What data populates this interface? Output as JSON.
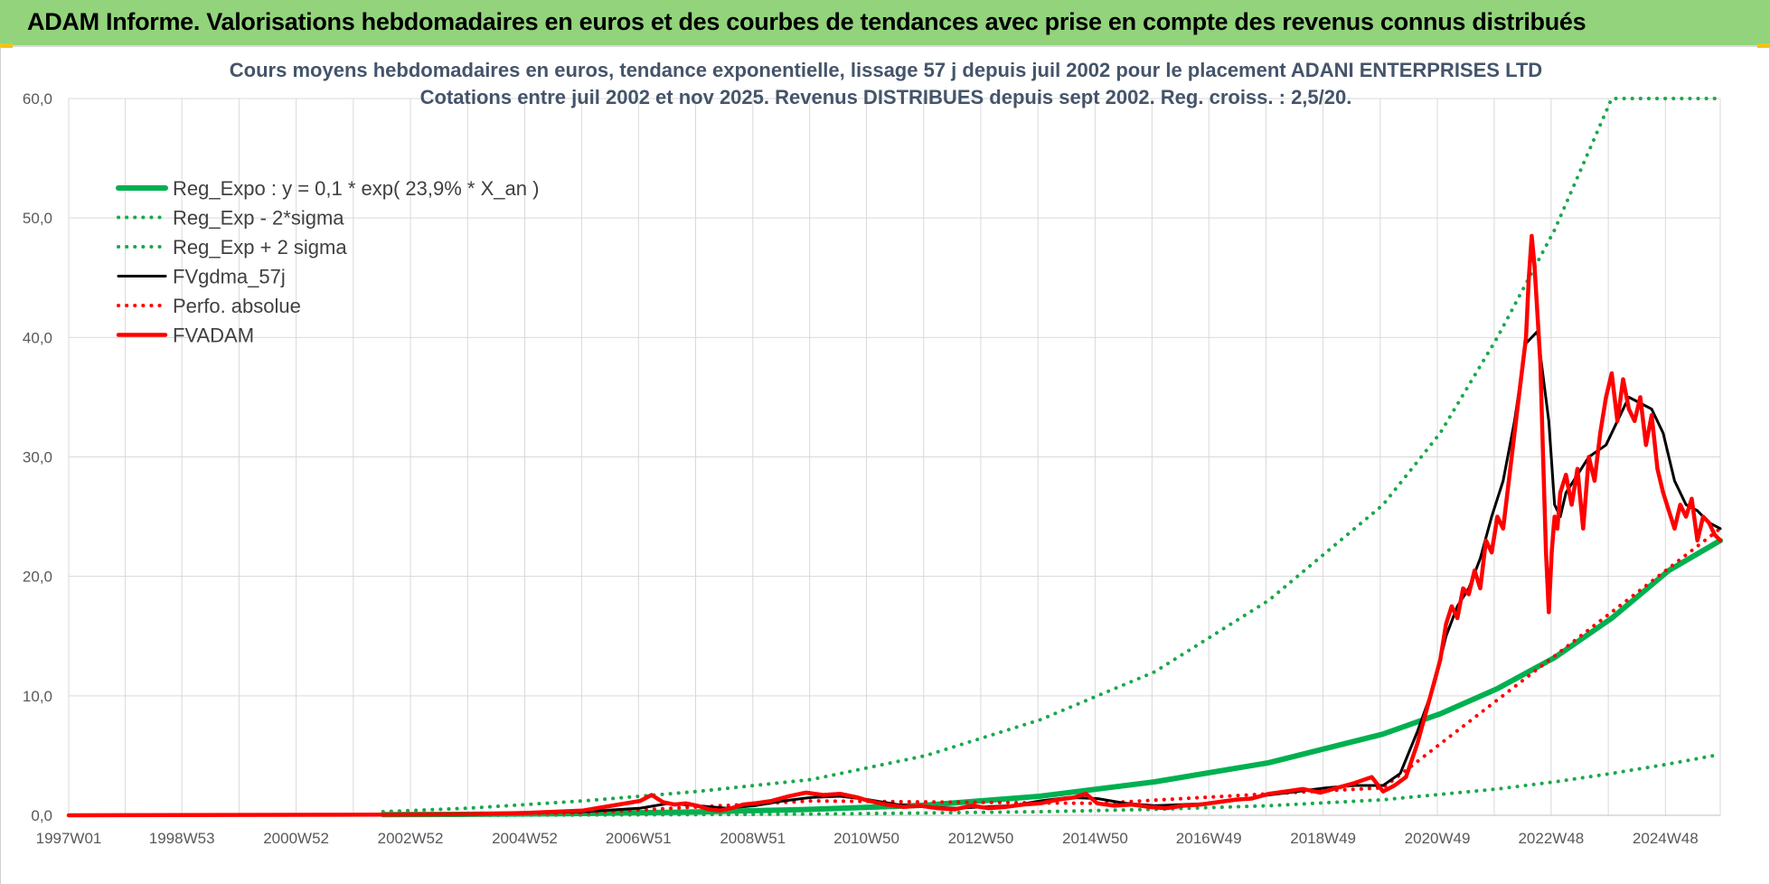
{
  "banner": {
    "title": "ADAM Informe. Valorisations hebdomadaires en euros et des courbes de tendances avec prise en compte des revenus connus distribués"
  },
  "colors": {
    "banner_bg": "#92d37c",
    "green": "#00b050",
    "dotgreen": "#1aa84c",
    "red": "#ff0000",
    "black": "#000000",
    "grid": "#d9d9d9"
  },
  "chart_data": {
    "type": "line",
    "title": "Cours moyens hebdomadaires en euros, tendance exponentielle, lissage 57 j depuis juil 2002 pour le placement ADANI ENTERPRISES LTD",
    "subtitle": "Cotations entre juil 2002 et nov 2025. Revenus DISTRIBUES depuis sept 2002. Reg. croiss. : 2,5/20.",
    "xlabel": "",
    "ylabel": "",
    "xlim": [
      1997.0,
      2025.9
    ],
    "ylim": [
      0,
      60
    ],
    "yticks": [
      "0,0",
      "10,0",
      "20,0",
      "30,0",
      "40,0",
      "50,0",
      "60,0"
    ],
    "xticks": [
      {
        "x": 1997.0,
        "label": "1997W01"
      },
      {
        "x": 1998.98,
        "label": "1998W53"
      },
      {
        "x": 2000.98,
        "label": "2000W52"
      },
      {
        "x": 2002.98,
        "label": "2002W52"
      },
      {
        "x": 2004.98,
        "label": "2004W52"
      },
      {
        "x": 2006.97,
        "label": "2006W51"
      },
      {
        "x": 2008.97,
        "label": "2008W51"
      },
      {
        "x": 2010.96,
        "label": "2010W50"
      },
      {
        "x": 2012.96,
        "label": "2012W50"
      },
      {
        "x": 2014.96,
        "label": "2014W50"
      },
      {
        "x": 2016.95,
        "label": "2016W49"
      },
      {
        "x": 2018.95,
        "label": "2018W49"
      },
      {
        "x": 2020.95,
        "label": "2020W49"
      },
      {
        "x": 2022.94,
        "label": "2022W48"
      },
      {
        "x": 2024.94,
        "label": "2024W48"
      }
    ],
    "legend_position": "top-left",
    "series": [
      {
        "name": "Reg_Expo : y = 0,1 * exp( 23,9% *  X_an )",
        "style": "solid-thick",
        "color": "#00b050",
        "x": [
          2002.5,
          2004,
          2006,
          2008,
          2010,
          2012,
          2014,
          2016,
          2018,
          2020,
          2021,
          2022,
          2023,
          2024,
          2025,
          2025.9
        ],
        "values": [
          0.05,
          0.08,
          0.15,
          0.28,
          0.5,
          0.85,
          1.6,
          2.8,
          4.4,
          6.8,
          8.5,
          10.6,
          13.2,
          16.5,
          20.5,
          23.0
        ]
      },
      {
        "name": "Reg_Exp - 2*sigma",
        "style": "dotted",
        "color": "#1aa84c",
        "x": [
          2002.5,
          2006,
          2010,
          2014,
          2016,
          2018,
          2020,
          2022,
          2023,
          2024,
          2025,
          2025.9
        ],
        "values": [
          0.0,
          0.02,
          0.1,
          0.3,
          0.5,
          0.8,
          1.3,
          2.2,
          2.8,
          3.5,
          4.3,
          5.1
        ]
      },
      {
        "name": "Reg_Exp + 2 sigma",
        "style": "dotted",
        "color": "#1aa84c",
        "x": [
          2002.5,
          2004,
          2006,
          2008,
          2010,
          2012,
          2014,
          2016,
          2018,
          2020,
          2021,
          2022,
          2023,
          2024,
          2025,
          2025.9
        ],
        "values": [
          0.3,
          0.6,
          1.2,
          2.0,
          3.0,
          5.0,
          8.0,
          12.0,
          18.0,
          26.0,
          32.0,
          40.0,
          49.0,
          60.0,
          60.0,
          60.0
        ]
      },
      {
        "name": "FVgdma_57j",
        "style": "solid",
        "color": "#000000",
        "x": [
          2002.5,
          2004,
          2006,
          2007,
          2007.5,
          2008,
          2008.5,
          2009,
          2009.5,
          2010,
          2010.5,
          2011,
          2011.5,
          2012,
          2012.5,
          2013,
          2013.5,
          2014,
          2014.5,
          2015,
          2015.5,
          2016,
          2016.5,
          2017,
          2017.5,
          2018,
          2018.5,
          2019,
          2019.5,
          2020,
          2020.3,
          2020.6,
          2020.9,
          2021.1,
          2021.3,
          2021.5,
          2021.7,
          2021.9,
          2022.1,
          2022.3,
          2022.5,
          2022.7,
          2022.9,
          2023.0,
          2023.1,
          2023.2,
          2023.4,
          2023.6,
          2023.9,
          2024.1,
          2024.3,
          2024.5,
          2024.7,
          2024.9,
          2025.1,
          2025.3,
          2025.5,
          2025.7,
          2025.9
        ],
        "values": [
          0.05,
          0.1,
          0.3,
          0.6,
          1.0,
          0.8,
          0.6,
          0.8,
          1.2,
          1.5,
          1.6,
          1.3,
          0.9,
          0.7,
          0.6,
          0.7,
          0.8,
          1.2,
          1.5,
          1.4,
          1.0,
          0.8,
          0.9,
          1.0,
          1.3,
          1.7,
          2.0,
          2.3,
          2.5,
          2.5,
          3.5,
          7.0,
          11.0,
          15.0,
          17.5,
          19.0,
          21.5,
          25.0,
          28.0,
          33.0,
          39.5,
          40.5,
          33.0,
          26.0,
          25.0,
          27.0,
          28.5,
          30.0,
          31.0,
          33.0,
          35.0,
          34.5,
          34.0,
          32.0,
          28.0,
          26.0,
          25.5,
          24.5,
          24.0
        ]
      },
      {
        "name": "Perfo. absolue",
        "style": "dotted",
        "color": "#ff0000",
        "x": [
          2002.5,
          2006,
          2010,
          2015,
          2018,
          2020,
          2025.9
        ],
        "values": [
          0.05,
          0.2,
          1.2,
          1.0,
          1.8,
          2.3,
          24.0
        ]
      },
      {
        "name": "FVADAM",
        "style": "solid-thick",
        "color": "#ff0000",
        "x": [
          1997.0,
          2002.5,
          2004,
          2005,
          2006,
          2006.5,
          2007,
          2007.2,
          2007.4,
          2007.6,
          2007.8,
          2008,
          2008.2,
          2008.4,
          2008.6,
          2008.8,
          2009,
          2009.3,
          2009.6,
          2009.9,
          2010.2,
          2010.5,
          2010.8,
          2011.0,
          2011.3,
          2011.6,
          2011.9,
          2012.2,
          2012.5,
          2012.8,
          2013.1,
          2013.4,
          2013.7,
          2014.0,
          2014.3,
          2014.6,
          2014.8,
          2015.0,
          2015.3,
          2015.6,
          2015.9,
          2016.2,
          2016.5,
          2016.8,
          2017.1,
          2017.4,
          2017.7,
          2018.0,
          2018.3,
          2018.6,
          2018.9,
          2019.2,
          2019.5,
          2019.8,
          2020.0,
          2020.2,
          2020.4,
          2020.6,
          2020.8,
          2021.0,
          2021.1,
          2021.2,
          2021.3,
          2021.4,
          2021.5,
          2021.6,
          2021.7,
          2021.8,
          2021.9,
          2022.0,
          2022.1,
          2022.2,
          2022.3,
          2022.4,
          2022.5,
          2022.55,
          2022.6,
          2022.65,
          2022.7,
          2022.75,
          2022.8,
          2022.85,
          2022.9,
          2022.95,
          2023.0,
          2023.05,
          2023.1,
          2023.2,
          2023.3,
          2023.4,
          2023.5,
          2023.6,
          2023.7,
          2023.8,
          2023.9,
          2024.0,
          2024.1,
          2024.2,
          2024.3,
          2024.4,
          2024.5,
          2024.6,
          2024.7,
          2024.8,
          2024.9,
          2025.0,
          2025.1,
          2025.2,
          2025.3,
          2025.4,
          2025.5,
          2025.6,
          2025.7,
          2025.8,
          2025.9
        ],
        "values": [
          0.0,
          0.05,
          0.1,
          0.2,
          0.4,
          0.8,
          1.2,
          1.7,
          1.1,
          0.9,
          1.0,
          0.8,
          0.5,
          0.4,
          0.6,
          0.9,
          1.0,
          1.2,
          1.6,
          1.9,
          1.7,
          1.8,
          1.5,
          1.2,
          0.9,
          0.7,
          0.8,
          0.6,
          0.5,
          0.8,
          0.6,
          0.7,
          0.9,
          1.0,
          1.3,
          1.5,
          1.8,
          1.0,
          0.8,
          0.9,
          0.7,
          0.6,
          0.8,
          0.9,
          1.1,
          1.3,
          1.4,
          1.8,
          2.0,
          2.2,
          1.9,
          2.3,
          2.7,
          3.2,
          2.0,
          2.5,
          3.2,
          6.0,
          9.5,
          13.0,
          16.0,
          17.5,
          16.5,
          19.0,
          18.5,
          20.5,
          19.0,
          23.0,
          22.0,
          25.0,
          24.0,
          28.0,
          32.0,
          36.0,
          40.0,
          45.0,
          48.5,
          46.0,
          42.0,
          38.0,
          30.0,
          22.0,
          17.0,
          22.0,
          25.0,
          24.0,
          27.0,
          28.5,
          26.0,
          29.0,
          24.0,
          30.0,
          28.0,
          32.0,
          35.0,
          37.0,
          33.0,
          36.5,
          34.0,
          33.0,
          35.0,
          31.0,
          33.5,
          29.0,
          27.0,
          25.5,
          24.0,
          26.0,
          25.0,
          26.5,
          23.0,
          25.0,
          24.5,
          23.5,
          23.0
        ]
      }
    ]
  }
}
